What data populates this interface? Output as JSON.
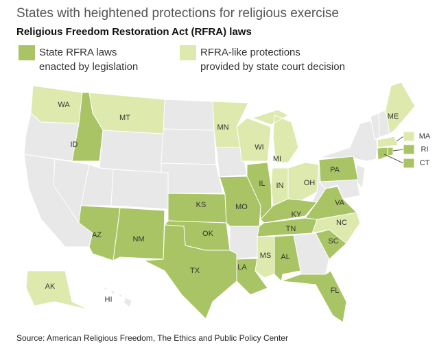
{
  "title": "States with heightened protections for religious exercise",
  "subtitle": "Religious Freedom Restoration Act (RFRA) laws",
  "legend": [
    {
      "label": [
        "State RFRA laws",
        "enacted by legislation"
      ],
      "color": "#a8c464"
    },
    {
      "label": [
        "RFRA-like protections",
        "provided by state court decision"
      ],
      "color": "#dde9ad"
    }
  ],
  "states": [
    {
      "label": "WA",
      "category": 1
    },
    {
      "label": "MT",
      "category": 1
    },
    {
      "label": "ID",
      "category": 0
    },
    {
      "label": "MN",
      "category": 1
    },
    {
      "label": "WI",
      "category": 1
    },
    {
      "label": "MI",
      "category": 1
    },
    {
      "label": "ME",
      "category": 1
    },
    {
      "label": "MA",
      "category": 1
    },
    {
      "label": "RI",
      "category": 0
    },
    {
      "label": "CT",
      "category": 0
    },
    {
      "label": "PA",
      "category": 0
    },
    {
      "label": "OH",
      "category": 1
    },
    {
      "label": "IN",
      "category": 1
    },
    {
      "label": "IL",
      "category": 0
    },
    {
      "label": "KS",
      "category": 0
    },
    {
      "label": "MO",
      "category": 0
    },
    {
      "label": "KY",
      "category": 0
    },
    {
      "label": "VA",
      "category": 0
    },
    {
      "label": "NC",
      "category": 1
    },
    {
      "label": "TN",
      "category": 0
    },
    {
      "label": "SC",
      "category": 0
    },
    {
      "label": "AZ",
      "category": 0
    },
    {
      "label": "NM",
      "category": 0
    },
    {
      "label": "OK",
      "category": 0
    },
    {
      "label": "TX",
      "category": 0
    },
    {
      "label": "LA",
      "category": 0
    },
    {
      "label": "MS",
      "category": 1
    },
    {
      "label": "AL",
      "category": 0
    },
    {
      "label": "FL",
      "category": 0
    },
    {
      "label": "AK",
      "category": 1
    },
    {
      "label": "HI",
      "category": null
    }
  ],
  "source": "Source: American Religious Freedom, The Ethics and Public Policy Center"
}
